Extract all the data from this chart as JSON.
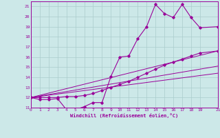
{
  "xlabel": "Windchill (Refroidissement éolien,°C)",
  "bg_color": "#cce8e8",
  "grid_color": "#aacccc",
  "line_color": "#990099",
  "xlim": [
    0,
    21
  ],
  "ylim": [
    11,
    21
  ],
  "xticks": [
    0,
    1,
    2,
    3,
    4,
    5,
    6,
    7,
    8,
    9,
    10,
    11,
    12,
    13,
    14,
    15,
    16,
    17,
    18,
    19,
    21
  ],
  "yticks": [
    11,
    12,
    13,
    14,
    15,
    16,
    17,
    18,
    19,
    20,
    21
  ],
  "line1_x": [
    0,
    1,
    2,
    3,
    4,
    5,
    6,
    7,
    8,
    9,
    10,
    11,
    12,
    13,
    14,
    15,
    16,
    17,
    18,
    19,
    21
  ],
  "line1_y": [
    12,
    11.8,
    11.8,
    11.9,
    10.8,
    10.8,
    11.1,
    11.5,
    11.5,
    14.1,
    16.0,
    16.1,
    17.8,
    19.0,
    21.2,
    20.3,
    19.9,
    21.2,
    19.9,
    18.9,
    19.0
  ],
  "line2_x": [
    0,
    1,
    2,
    3,
    4,
    5,
    6,
    7,
    8,
    9,
    10,
    11,
    12,
    13,
    14,
    15,
    16,
    17,
    18,
    19,
    21
  ],
  "line2_y": [
    12,
    12.0,
    12.0,
    12.0,
    12.1,
    12.1,
    12.2,
    12.4,
    12.7,
    13.0,
    13.3,
    13.6,
    14.0,
    14.4,
    14.8,
    15.2,
    15.5,
    15.8,
    16.1,
    16.4,
    16.6
  ],
  "line3_x": [
    0,
    21
  ],
  "line3_y": [
    12,
    16.6
  ],
  "line4_x": [
    0,
    21
  ],
  "line4_y": [
    12,
    14.4
  ],
  "line5_x": [
    0,
    21
  ],
  "line5_y": [
    12,
    15.1
  ]
}
